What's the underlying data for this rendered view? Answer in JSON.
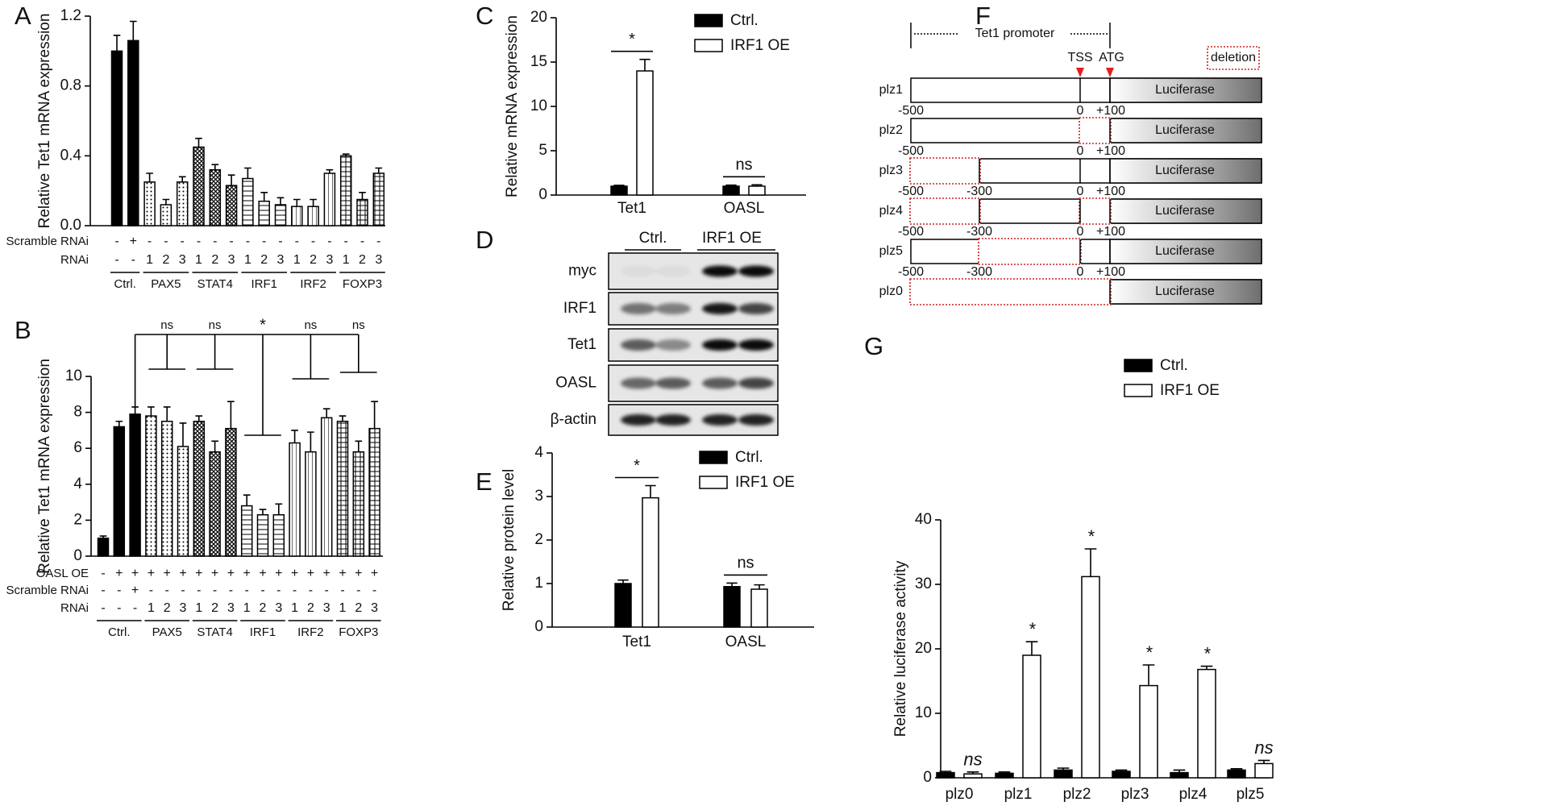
{
  "panel_labels": [
    "A",
    "B",
    "C",
    "D",
    "E",
    "F",
    "G"
  ],
  "chart_data": [
    {
      "type": "bar",
      "y_label": "Relative Tet1  mRNA expression",
      "ylim": [
        0,
        1.2
      ],
      "yticks": [
        {
          "value": 0,
          "label": "0.0"
        },
        0.4,
        0.8,
        1.2
      ],
      "series": [
        {
          "name": "Ctrl.",
          "color": "#000000",
          "pattern": "solid",
          "values": [
            1.0,
            1.06
          ],
          "errors": [
            0.09,
            0.11
          ]
        },
        {
          "name": "PAX5",
          "color": "#000000",
          "pattern": "dots",
          "values": [
            0.25,
            0.12,
            0.25
          ],
          "errors": [
            0.05,
            0.03,
            0.03
          ]
        },
        {
          "name": "STAT4",
          "color": "#000000",
          "pattern": "crosshatch",
          "values": [
            0.45,
            0.32,
            0.23
          ],
          "errors": [
            0.05,
            0.03,
            0.06
          ]
        },
        {
          "name": "IRF1",
          "color": "#000000",
          "pattern": "hlines",
          "values": [
            0.27,
            0.14,
            0.12
          ],
          "errors": [
            0.06,
            0.05,
            0.04
          ]
        },
        {
          "name": "IRF2",
          "color": "#000000",
          "pattern": "vlines",
          "values": [
            0.11,
            0.11,
            0.3
          ],
          "errors": [
            0.04,
            0.04,
            0.02
          ]
        },
        {
          "name": "FOXP3",
          "color": "#000000",
          "pattern": "grid",
          "values": [
            0.4,
            0.15,
            0.3
          ],
          "errors": [
            0.01,
            0.04,
            0.03
          ]
        }
      ],
      "condition_rows": [
        {
          "label": "Scramble RNAi",
          "marks": [
            "-",
            "+",
            "-",
            "-",
            "-",
            "-",
            "-",
            "-",
            "-",
            "-",
            "-",
            "-",
            "-",
            "-",
            "-",
            "-",
            "-"
          ]
        },
        {
          "label": "RNAi",
          "marks": [
            "-",
            "-",
            "1",
            "2",
            "3",
            "1",
            "2",
            "3",
            "1",
            "2",
            "3",
            "1",
            "2",
            "3",
            "1",
            "2",
            "3"
          ]
        }
      ]
    },
    {
      "type": "bar",
      "y_label": "Relative Tet1  mRNA expression",
      "ylim": [
        0,
        10
      ],
      "yticks": [
        0,
        2,
        4,
        6,
        8,
        10
      ],
      "series": [
        {
          "name": "Ctrl.",
          "color": "#000000",
          "pattern": "solid",
          "values": [
            1.0,
            7.2,
            7.9
          ],
          "errors": [
            0.12,
            0.3,
            0.4
          ]
        },
        {
          "name": "PAX5",
          "color": "#000000",
          "pattern": "dots",
          "values": [
            7.8,
            7.5,
            6.1
          ],
          "errors": [
            0.5,
            0.8,
            1.3
          ]
        },
        {
          "name": "STAT4",
          "color": "#000000",
          "pattern": "crosshatch",
          "values": [
            7.5,
            5.8,
            7.1
          ],
          "errors": [
            0.3,
            0.6,
            1.5
          ]
        },
        {
          "name": "IRF1",
          "color": "#000000",
          "pattern": "hlines",
          "values": [
            2.8,
            2.3,
            2.3
          ],
          "errors": [
            0.6,
            0.3,
            0.6
          ]
        },
        {
          "name": "IRF2",
          "color": "#000000",
          "pattern": "vlines",
          "values": [
            6.3,
            5.8,
            7.7
          ],
          "errors": [
            0.7,
            1.1,
            0.5
          ]
        },
        {
          "name": "FOXP3",
          "color": "#000000",
          "pattern": "grid",
          "values": [
            7.5,
            5.8,
            7.1
          ],
          "errors": [
            0.3,
            0.6,
            1.5
          ]
        }
      ],
      "condition_rows": [
        {
          "label": "OASL OE",
          "marks": [
            "-",
            "+",
            "+",
            "+",
            "+",
            "+",
            "+",
            "+",
            "+",
            "+",
            "+",
            "+",
            "+",
            "+",
            "+",
            "+",
            "+",
            "+"
          ]
        },
        {
          "label": "Scramble RNAi",
          "marks": [
            "-",
            "-",
            "+",
            "-",
            "-",
            "-",
            "-",
            "-",
            "-",
            "-",
            "-",
            "-",
            "-",
            "-",
            "-",
            "-",
            "-",
            "-"
          ]
        },
        {
          "label": "RNAi",
          "marks": [
            "-",
            "-",
            "-",
            "1",
            "2",
            "3",
            "1",
            "2",
            "3",
            "1",
            "2",
            "3",
            "1",
            "2",
            "3",
            "1",
            "2",
            "3"
          ]
        }
      ],
      "significance": [
        "ns",
        "ns",
        "*",
        "ns",
        "ns"
      ]
    },
    {
      "type": "bar",
      "y_label": "Relative  mRNA expression",
      "ylim": [
        0,
        20
      ],
      "yticks": [
        0,
        5,
        10,
        15,
        20
      ],
      "categories": [
        "Tet1",
        "OASL"
      ],
      "series": [
        {
          "name": "Ctrl.",
          "color": "#000000",
          "values": [
            1.0,
            1.0
          ],
          "errors": [
            0.1,
            0.12
          ]
        },
        {
          "name": "IRF1 OE",
          "color": "#ffffff",
          "values": [
            14.0,
            1.0
          ],
          "errors": [
            1.3,
            0.15
          ]
        }
      ],
      "annotations": [
        "*",
        "ns"
      ]
    },
    {
      "type": "bar",
      "y_label": "Relative protein level",
      "ylim": [
        0,
        4
      ],
      "yticks": [
        0,
        1,
        2,
        3,
        4
      ],
      "categories": [
        "Tet1",
        "OASL"
      ],
      "series": [
        {
          "name": "Ctrl.",
          "color": "#000000",
          "values": [
            1.0,
            0.93
          ],
          "errors": [
            0.08,
            0.08
          ]
        },
        {
          "name": "IRF1 OE",
          "color": "#ffffff",
          "values": [
            2.97,
            0.87
          ],
          "errors": [
            0.28,
            0.1
          ]
        }
      ],
      "annotations": [
        "*",
        "ns"
      ]
    },
    {
      "type": "bar",
      "y_label": "Relative luciferase activity",
      "ylim": [
        0,
        40
      ],
      "yticks": [
        0,
        10,
        20,
        30,
        40
      ],
      "categories": [
        "plz0",
        "plz1",
        "plz2",
        "plz3",
        "plz4",
        "plz5"
      ],
      "series": [
        {
          "name": "Ctrl.",
          "color": "#000000",
          "values": [
            0.8,
            0.7,
            1.2,
            1.0,
            0.8,
            1.2
          ],
          "errors": [
            0.2,
            0.2,
            0.3,
            0.2,
            0.4,
            0.2
          ]
        },
        {
          "name": "IRF1 OE",
          "color": "#ffffff",
          "values": [
            0.6,
            19.0,
            31.2,
            14.3,
            16.8,
            2.2
          ],
          "errors": [
            0.3,
            2.1,
            4.3,
            3.2,
            0.5,
            0.5
          ]
        }
      ],
      "annotations": [
        "ns",
        "*",
        "*",
        "*",
        "*",
        "ns"
      ]
    }
  ],
  "blot": {
    "columns": [
      "Ctrl.",
      "IRF1 OE"
    ],
    "rows": [
      "myc",
      "IRF1",
      "Tet1",
      "OASL",
      "β-actin"
    ]
  },
  "diagram": {
    "header": "Tet1 promoter",
    "sites": [
      "TSS",
      "ATG"
    ],
    "deletion_label": "deletion",
    "reporter": "Luciferase",
    "constructs": [
      {
        "name": "plz1",
        "positions": [
          "-500",
          "0",
          "+100"
        ]
      },
      {
        "name": "plz2",
        "positions": [
          "-500",
          "0",
          "+100"
        ]
      },
      {
        "name": "plz3",
        "positions": [
          "-500",
          "-300",
          "0",
          "+100"
        ]
      },
      {
        "name": "plz4",
        "positions": [
          "-500",
          "-300",
          "0",
          "+100"
        ]
      },
      {
        "name": "plz5",
        "positions": [
          "-500",
          "-300",
          "0",
          "+100"
        ]
      },
      {
        "name": "plz0"
      }
    ]
  }
}
